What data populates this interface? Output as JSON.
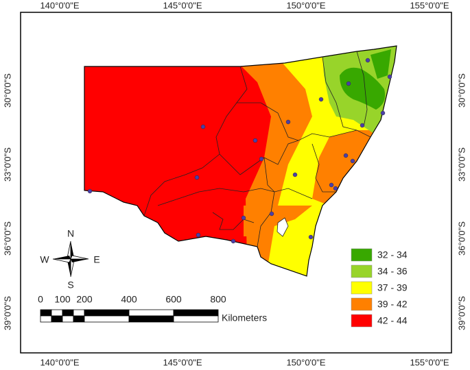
{
  "map": {
    "top_labels": [
      "140°0'0\"E",
      "145°0'0\"E",
      "150°0'0\"E",
      "155°0'0\"E"
    ],
    "bottom_labels": [
      "140°0'0\"E",
      "145°0'0\"E",
      "150°0'0\"E",
      "155°0'0\"E"
    ],
    "left_labels": [
      "30°0'0\"S",
      "33°0'0\"S",
      "36°0'0\"S",
      "39°0'0\"S"
    ],
    "right_labels": [
      "30°0'0\"S",
      "33°0'0\"S",
      "36°0'0\"S",
      "39°0'0\"S"
    ],
    "legend": {
      "items": [
        {
          "label": "32 - 34",
          "color": "#38a800"
        },
        {
          "label": "34 - 36",
          "color": "#98d42a"
        },
        {
          "label": "37 - 39",
          "color": "#ffff00"
        },
        {
          "label": "39 - 42",
          "color": "#ff8000"
        },
        {
          "label": "42 - 44",
          "color": "#ff0000"
        }
      ]
    },
    "scale_bar": {
      "ticks": [
        "0",
        "100",
        "200",
        "400",
        "600",
        "800"
      ],
      "unit": "Kilometers"
    },
    "compass": {
      "n": "N",
      "s": "S",
      "e": "E",
      "w": "W"
    }
  }
}
